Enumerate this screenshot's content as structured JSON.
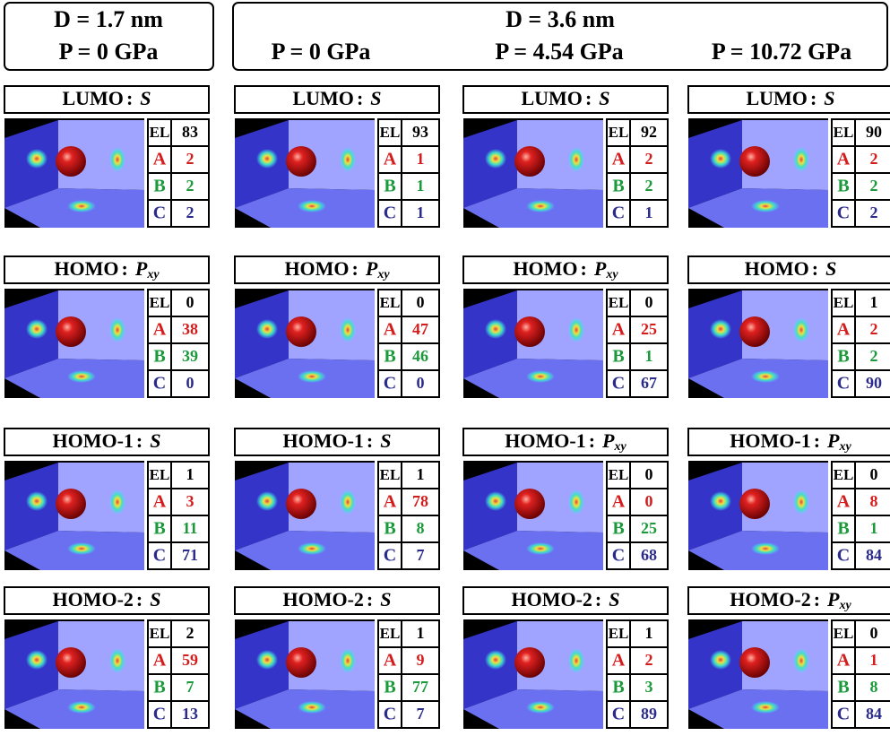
{
  "header": {
    "left": {
      "diameter": "D = 1.7 nm",
      "pressure": "P = 0 GPa"
    },
    "right": {
      "diameter": "D = 3.6 nm",
      "pressures": [
        "P = 0 GPa",
        "P = 4.54 GPa",
        "P = 10.72 GPa"
      ]
    }
  },
  "separator": ":",
  "row_labels": [
    "EL",
    "A",
    "B",
    "C"
  ],
  "columns": [
    {
      "panels": [
        {
          "orbital": "LUMO",
          "symmetry": "S",
          "values": [
            83,
            2,
            2,
            2
          ]
        },
        {
          "orbital": "HOMO",
          "symmetry": "P",
          "symmetry_subscript": "xy",
          "values": [
            0,
            38,
            39,
            0
          ]
        },
        {
          "orbital": "HOMO-1",
          "symmetry": "S",
          "values": [
            1,
            3,
            11,
            71
          ]
        },
        {
          "orbital": "HOMO-2",
          "symmetry": "S",
          "values": [
            2,
            59,
            7,
            13
          ]
        }
      ]
    },
    {
      "panels": [
        {
          "orbital": "LUMO",
          "symmetry": "S",
          "values": [
            93,
            1,
            1,
            1
          ]
        },
        {
          "orbital": "HOMO",
          "symmetry": "P",
          "symmetry_subscript": "xy",
          "values": [
            0,
            47,
            46,
            0
          ]
        },
        {
          "orbital": "HOMO-1",
          "symmetry": "S",
          "values": [
            1,
            78,
            8,
            7
          ]
        },
        {
          "orbital": "HOMO-2",
          "symmetry": "S",
          "values": [
            1,
            9,
            77,
            7
          ]
        }
      ]
    },
    {
      "panels": [
        {
          "orbital": "LUMO",
          "symmetry": "S",
          "values": [
            92,
            2,
            2,
            1
          ]
        },
        {
          "orbital": "HOMO",
          "symmetry": "P",
          "symmetry_subscript": "xy",
          "values": [
            0,
            25,
            1,
            67
          ]
        },
        {
          "orbital": "HOMO-1",
          "symmetry": "P",
          "symmetry_subscript": "xy",
          "values": [
            0,
            0,
            25,
            68
          ]
        },
        {
          "orbital": "HOMO-2",
          "symmetry": "S",
          "values": [
            1,
            2,
            3,
            89
          ]
        }
      ]
    },
    {
      "panels": [
        {
          "orbital": "LUMO",
          "symmetry": "S",
          "values": [
            90,
            2,
            2,
            2
          ]
        },
        {
          "orbital": "HOMO",
          "symmetry": "S",
          "values": [
            1,
            2,
            2,
            90
          ]
        },
        {
          "orbital": "HOMO-1",
          "symmetry": "P",
          "symmetry_subscript": "xy",
          "values": [
            0,
            8,
            1,
            84
          ]
        },
        {
          "orbital": "HOMO-2",
          "symmetry": "P",
          "symmetry_subscript": "xy",
          "values": [
            0,
            1,
            8,
            84
          ]
        }
      ]
    }
  ]
}
